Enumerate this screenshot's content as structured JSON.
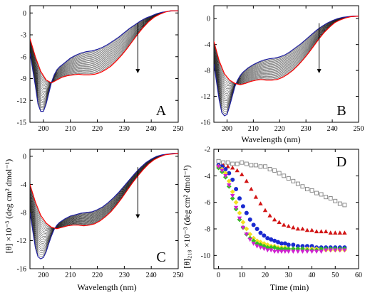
{
  "figure": {
    "ylabel_top": "[θ] ×10⁻³ (deg cm² dmol⁻¹)",
    "ylabel_right": "[θ]₂₁₈ ×10⁻³ (deg cm² dmol⁻¹)",
    "wavelength_label": "Wavelength (nm)",
    "time_label": "Time (min)"
  },
  "chart_data": [
    {
      "type": "line",
      "panel": "A",
      "xlim": [
        195,
        250
      ],
      "ylim": [
        -15,
        1
      ],
      "xticks": [
        200,
        210,
        220,
        230,
        240,
        250
      ],
      "yticks": [
        0,
        -3,
        -6,
        -9,
        -12,
        -15
      ],
      "xlabel": "",
      "arrow": "down",
      "series": [
        {
          "color": "#2020a0",
          "x": [
            195,
            197,
            198,
            199,
            200,
            201,
            202,
            203,
            204,
            205,
            206,
            208,
            210,
            212,
            214,
            216,
            218,
            220,
            222,
            224,
            226,
            228,
            230,
            232,
            234,
            236,
            238,
            240,
            242,
            244,
            246,
            248,
            250
          ],
          "y": [
            -5.5,
            -10,
            -12.5,
            -13.5,
            -13.5,
            -12.5,
            -11,
            -9.5,
            -8.5,
            -7.8,
            -7.4,
            -6.8,
            -6.2,
            -5.8,
            -5.5,
            -5.3,
            -5.2,
            -5.0,
            -4.7,
            -4.3,
            -3.8,
            -3.3,
            -2.7,
            -2.1,
            -1.6,
            -1.1,
            -0.7,
            -0.4,
            -0.1,
            0.1,
            0.2,
            0.3,
            0.3
          ]
        },
        {
          "color": "#ff0000",
          "x": [
            195,
            197,
            199,
            201,
            203,
            205,
            207,
            209,
            211,
            213,
            215,
            217,
            219,
            221,
            223,
            225,
            227,
            229,
            231,
            233,
            235,
            237,
            239,
            241,
            243,
            245,
            247,
            250
          ],
          "y": [
            -3.5,
            -6,
            -8,
            -9.2,
            -9.6,
            -9.2,
            -8.8,
            -8.6,
            -8.5,
            -8.4,
            -8.5,
            -8.5,
            -8.4,
            -8.2,
            -7.8,
            -7.3,
            -6.6,
            -5.8,
            -4.9,
            -3.9,
            -2.9,
            -2.0,
            -1.2,
            -0.6,
            -0.2,
            0.1,
            0.3,
            0.3
          ]
        }
      ]
    },
    {
      "type": "line",
      "panel": "B",
      "xlim": [
        195,
        250
      ],
      "ylim": [
        -16,
        2
      ],
      "xticks": [
        200,
        210,
        220,
        230,
        240,
        250
      ],
      "yticks": [
        0,
        -4,
        -8,
        -12,
        -16
      ],
      "xlabel": "Wavelength (nm)",
      "arrow": "down",
      "series": [
        {
          "color": "#2020a0",
          "x": [
            195,
            197,
            198,
            199,
            200,
            201,
            202,
            203,
            204,
            205,
            206,
            208,
            210,
            212,
            214,
            216,
            218,
            220,
            222,
            224,
            226,
            228,
            230,
            232,
            234,
            236,
            238,
            240,
            242,
            244,
            246,
            248,
            250
          ],
          "y": [
            -7,
            -12.5,
            -14.5,
            -15,
            -14.8,
            -13.5,
            -12,
            -10.5,
            -9.5,
            -8.8,
            -8.3,
            -7.6,
            -7.1,
            -6.7,
            -6.4,
            -6.2,
            -6.1,
            -5.9,
            -5.6,
            -5.1,
            -4.5,
            -3.9,
            -3.2,
            -2.5,
            -1.8,
            -1.2,
            -0.7,
            -0.3,
            0,
            0.2,
            0.3,
            0.4,
            0.4
          ]
        },
        {
          "color": "#ff0000",
          "x": [
            195,
            197,
            199,
            201,
            203,
            205,
            207,
            209,
            211,
            213,
            215,
            217,
            219,
            221,
            223,
            225,
            227,
            229,
            231,
            233,
            235,
            237,
            239,
            241,
            243,
            245,
            247,
            250
          ],
          "y": [
            -3.5,
            -6.5,
            -8.5,
            -9.5,
            -10,
            -10.2,
            -10,
            -9.7,
            -9.5,
            -9.4,
            -9.5,
            -9.5,
            -9.4,
            -9.1,
            -8.6,
            -8.0,
            -7.2,
            -6.3,
            -5.3,
            -4.2,
            -3.1,
            -2.1,
            -1.3,
            -0.6,
            -0.2,
            0.1,
            0.3,
            0.4
          ]
        }
      ]
    },
    {
      "type": "line",
      "panel": "C",
      "xlim": [
        195,
        250
      ],
      "ylim": [
        -16,
        1
      ],
      "xticks": [
        200,
        210,
        220,
        230,
        240,
        250
      ],
      "yticks": [
        0,
        -4,
        -8,
        -12,
        -16
      ],
      "xlabel": "Wavelength (nm)",
      "arrow": "down",
      "series": [
        {
          "color": "#2020a0",
          "x": [
            195,
            197,
            198,
            199,
            200,
            201,
            202,
            203,
            204,
            205,
            206,
            208,
            210,
            212,
            214,
            216,
            218,
            220,
            222,
            224,
            226,
            228,
            230,
            232,
            234,
            236,
            238,
            240,
            242,
            244,
            246,
            248,
            250
          ],
          "y": [
            -8,
            -13,
            -14.3,
            -14.6,
            -14.4,
            -13.6,
            -12.4,
            -11.3,
            -10.4,
            -9.8,
            -9.4,
            -8.9,
            -8.5,
            -8.3,
            -8.1,
            -8.0,
            -7.9,
            -7.6,
            -7.2,
            -6.6,
            -5.9,
            -5.1,
            -4.2,
            -3.3,
            -2.4,
            -1.6,
            -0.9,
            -0.4,
            0,
            0.2,
            0.3,
            0.4,
            0.4
          ]
        },
        {
          "color": "#ff0000",
          "x": [
            195,
            197,
            199,
            201,
            203,
            205,
            207,
            209,
            211,
            213,
            215,
            217,
            219,
            221,
            223,
            225,
            227,
            229,
            231,
            233,
            235,
            237,
            239,
            241,
            243,
            245,
            247,
            250
          ],
          "y": [
            -4,
            -6.5,
            -8.4,
            -9.5,
            -10.1,
            -10.3,
            -10.1,
            -9.9,
            -9.8,
            -9.8,
            -9.9,
            -9.8,
            -9.6,
            -9.2,
            -8.6,
            -7.9,
            -7.0,
            -6.0,
            -4.9,
            -3.8,
            -2.8,
            -1.9,
            -1.1,
            -0.5,
            -0.1,
            0.2,
            0.3,
            0.4
          ]
        }
      ]
    },
    {
      "type": "scatter",
      "panel": "D",
      "xlim": [
        -2,
        60
      ],
      "ylim": [
        -11,
        -2
      ],
      "xticks": [
        0,
        10,
        20,
        30,
        40,
        50,
        60
      ],
      "yticks": [
        -2,
        -4,
        -6,
        -8,
        -10
      ],
      "xlabel": "Time (min)",
      "series": [
        {
          "marker": "square-open",
          "color": "#808080",
          "x": [
            0,
            2,
            4,
            6,
            8,
            10,
            12,
            14,
            16,
            18,
            20,
            22,
            24,
            26,
            28,
            30,
            32,
            34,
            36,
            38,
            40,
            42,
            44,
            46,
            48,
            50,
            52,
            54
          ],
          "y": [
            -2.9,
            -3.0,
            -3.0,
            -3.1,
            -3.1,
            -3.0,
            -3.1,
            -3.2,
            -3.2,
            -3.3,
            -3.3,
            -3.5,
            -3.6,
            -3.8,
            -4.0,
            -4.2,
            -4.4,
            -4.6,
            -4.8,
            -5.0,
            -5.1,
            -5.3,
            -5.4,
            -5.6,
            -5.7,
            -5.9,
            -6.1,
            -6.2
          ]
        },
        {
          "marker": "triangle",
          "color": "#d21414",
          "x": [
            0,
            2,
            4,
            6,
            8,
            10,
            12,
            14,
            16,
            18,
            20,
            22,
            24,
            26,
            28,
            30,
            32,
            34,
            36,
            38,
            40,
            42,
            44,
            46,
            48,
            50,
            52,
            54
          ],
          "y": [
            -3.2,
            -3.2,
            -3.3,
            -3.4,
            -3.6,
            -3.9,
            -4.4,
            -5.0,
            -5.6,
            -6.1,
            -6.6,
            -7.0,
            -7.3,
            -7.5,
            -7.7,
            -7.8,
            -7.9,
            -8.0,
            -8.0,
            -8.1,
            -8.1,
            -8.2,
            -8.2,
            -8.2,
            -8.3,
            -8.3,
            -8.3,
            -8.3
          ]
        },
        {
          "marker": "circle",
          "color": "#1a2ad0",
          "x": [
            0,
            1.5,
            3,
            4.5,
            6,
            7.5,
            9,
            10.5,
            12,
            13.5,
            15,
            16.5,
            18,
            19.5,
            21,
            22.5,
            24,
            25.5,
            27,
            28.5,
            30,
            32,
            34,
            36,
            38,
            40,
            42,
            44,
            46,
            48,
            50,
            52,
            54
          ],
          "y": [
            -3.2,
            -3.3,
            -3.5,
            -3.8,
            -4.3,
            -5.0,
            -5.7,
            -6.3,
            -6.8,
            -7.3,
            -7.7,
            -8.0,
            -8.3,
            -8.5,
            -8.7,
            -8.8,
            -8.9,
            -9.0,
            -9.1,
            -9.1,
            -9.2,
            -9.2,
            -9.3,
            -9.3,
            -9.3,
            -9.3,
            -9.4,
            -9.4,
            -9.4,
            -9.4,
            -9.4,
            -9.4,
            -9.4
          ]
        },
        {
          "marker": "diamond",
          "color": "#f4e020",
          "x": [
            0,
            1.5,
            3,
            4.5,
            6,
            7.5,
            9,
            10.5,
            12,
            13.5,
            15,
            16.5,
            18,
            19.5,
            21,
            22.5,
            24,
            25.5,
            27,
            28.5,
            30,
            32,
            34,
            36,
            38,
            40,
            42,
            44,
            46,
            48,
            50,
            52,
            54
          ],
          "y": [
            -3.3,
            -3.5,
            -3.8,
            -4.4,
            -5.2,
            -6.0,
            -6.8,
            -7.5,
            -8.0,
            -8.4,
            -8.7,
            -8.9,
            -9.0,
            -9.1,
            -9.2,
            -9.3,
            -9.3,
            -9.4,
            -9.4,
            -9.4,
            -9.5,
            -9.5,
            -9.5,
            -9.5,
            -9.5,
            -9.5,
            -9.5,
            -9.6,
            -9.6,
            -9.6,
            -9.6,
            -9.6,
            -9.6
          ]
        },
        {
          "marker": "diamond",
          "color": "#30c020",
          "x": [
            0,
            1.5,
            3,
            4.5,
            6,
            7.5,
            9,
            10.5,
            12,
            13.5,
            15,
            16.5,
            18,
            19.5,
            21,
            22.5,
            24,
            25.5,
            27,
            28.5,
            30,
            32,
            34,
            36,
            38,
            40,
            42,
            44,
            46,
            48,
            50,
            52,
            54
          ],
          "y": [
            -3.4,
            -3.7,
            -4.1,
            -4.8,
            -5.7,
            -6.5,
            -7.3,
            -7.9,
            -8.4,
            -8.7,
            -8.9,
            -9.1,
            -9.2,
            -9.3,
            -9.4,
            -9.4,
            -9.4,
            -9.5,
            -9.5,
            -9.5,
            -9.5,
            -9.5,
            -9.5,
            -9.5,
            -9.6,
            -9.6,
            -9.6,
            -9.5,
            -9.5,
            -9.5,
            -9.5,
            -9.5,
            -9.5
          ]
        },
        {
          "marker": "triangle-down",
          "color": "#d020d0",
          "x": [
            0,
            1.5,
            3,
            4.5,
            6,
            7.5,
            9,
            10.5,
            12,
            13.5,
            15,
            16.5,
            18,
            19.5,
            21,
            22.5,
            24,
            25.5,
            27,
            28.5,
            30,
            32,
            34,
            36,
            38,
            40,
            42,
            44,
            46,
            48,
            50,
            52,
            54
          ],
          "y": [
            -3.3,
            -3.6,
            -4.0,
            -4.7,
            -5.5,
            -6.4,
            -7.2,
            -7.9,
            -8.4,
            -8.8,
            -9.1,
            -9.3,
            -9.4,
            -9.5,
            -9.6,
            -9.6,
            -9.7,
            -9.7,
            -9.7,
            -9.7,
            -9.7,
            -9.7,
            -9.7,
            -9.7,
            -9.7,
            -9.7,
            -9.7,
            -9.7,
            -9.6,
            -9.6,
            -9.6,
            -9.6,
            -9.6
          ]
        }
      ]
    }
  ]
}
